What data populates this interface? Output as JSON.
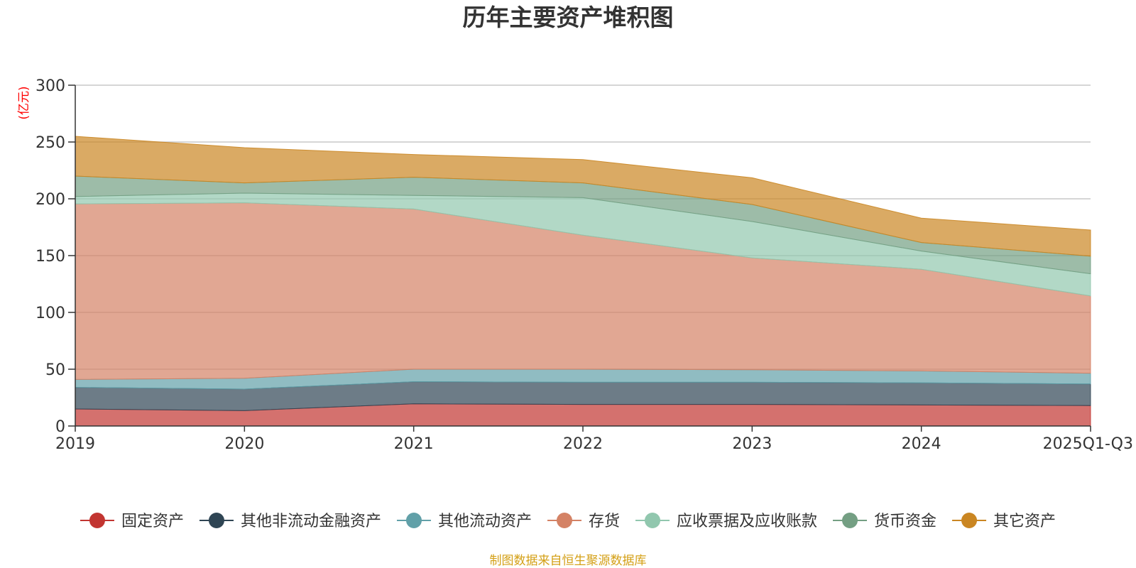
{
  "chart_data": {
    "type": "area",
    "stacked": true,
    "title": "历年主要资产堆积图",
    "unit_label": "(亿元)",
    "xlabel": "",
    "ylabel": "亿元",
    "ylim": [
      0,
      300
    ],
    "yticks": [
      0,
      50,
      100,
      150,
      200,
      250,
      300
    ],
    "grid": true,
    "legend_position": "bottom",
    "categories": [
      "2019",
      "2020",
      "2021",
      "2022",
      "2023",
      "2024",
      "2025Q1-Q3"
    ],
    "series": [
      {
        "name": "固定资产",
        "color": "#c23531",
        "values": [
          15,
          13.5,
          19.5,
          19,
          19,
          18.5,
          18
        ]
      },
      {
        "name": "其他非流动金融资产",
        "color": "#2f4554",
        "values": [
          19,
          19,
          19.5,
          19.5,
          19.5,
          19.5,
          19
        ]
      },
      {
        "name": "其他流动资产",
        "color": "#61a0a8",
        "values": [
          7,
          9.5,
          11,
          11.5,
          11,
          10.5,
          9.5
        ]
      },
      {
        "name": "存货",
        "color": "#d48265",
        "values": [
          154.5,
          154.5,
          141,
          118,
          98.5,
          89.5,
          68
        ]
      },
      {
        "name": "应收票据及应收账款",
        "color": "#91c7ae",
        "values": [
          6.5,
          8.5,
          12,
          33,
          32,
          16,
          19.5
        ]
      },
      {
        "name": "货币资金",
        "color": "#749f83",
        "values": [
          18,
          9,
          16,
          13,
          15,
          7.5,
          15.5
        ]
      },
      {
        "name": "其它资产",
        "color": "#ca8622",
        "values": [
          35,
          31,
          20,
          20.5,
          23.5,
          21.5,
          23
        ]
      }
    ]
  },
  "source_note": "制图数据来自恒生聚源数据库",
  "colors": {
    "axis": "#333333",
    "grid": "#c8c8c8",
    "unit_text": "#ff0000",
    "source_text": "#d4a017"
  }
}
